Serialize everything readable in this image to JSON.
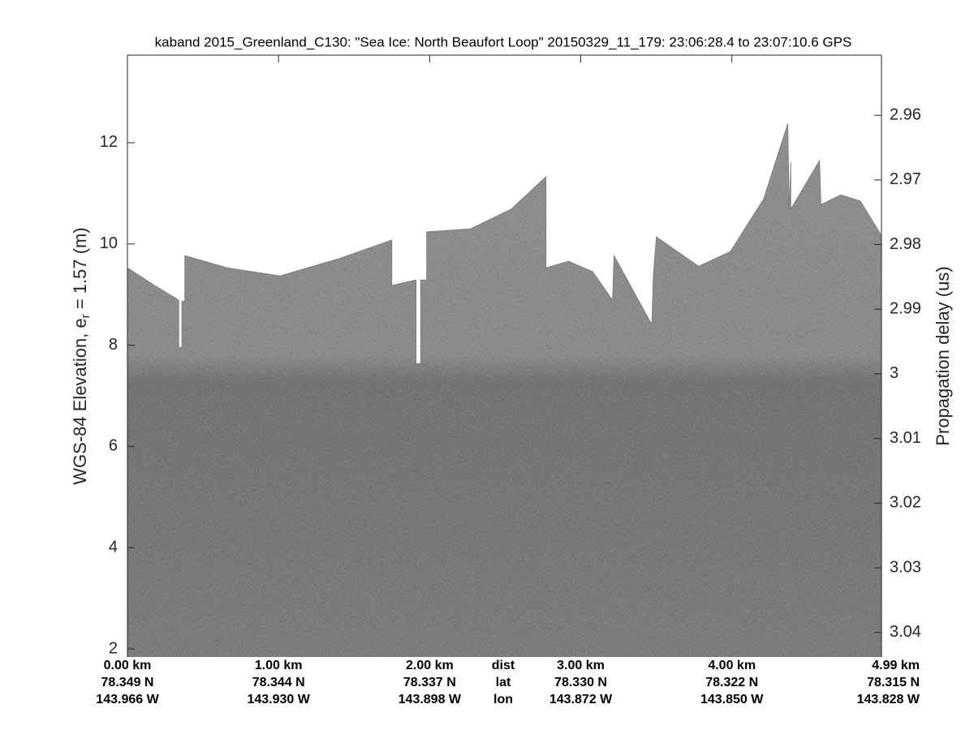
{
  "chart_data": {
    "type": "echogram",
    "title": "kaband 2015_Greenland_C130: \"Sea Ice: North Beaufort Loop\"  20150329_11_179: 23:06:28.4 to 23:07:10.6 GPS",
    "ylabel": "WGS-84 Elevation, e",
    "ylabel_sub": "r",
    "ylabel_rest": " = 1.57 (m)",
    "y2label": "Propagation delay (us)",
    "xlim": [
      0,
      4.99
    ],
    "ylim": [
      1.84,
      13.73
    ],
    "y2lim": [
      3.0438,
      2.9507
    ],
    "yticks": [
      2,
      4,
      6,
      8,
      10,
      12
    ],
    "y2ticks": [
      2.96,
      2.97,
      2.98,
      2.99,
      3,
      3.01,
      3.02,
      3.03,
      3.04
    ],
    "xticks": [
      {
        "value": 0,
        "label": "0.00 km"
      },
      {
        "value": 1,
        "label": "1.00 km"
      },
      {
        "value": 2,
        "label": "2.00 km"
      },
      {
        "value": 3,
        "label": "3.00 km"
      },
      {
        "value": 4,
        "label": "4.00 km"
      },
      {
        "value": 4.99,
        "label": "4.99 km"
      }
    ],
    "lat_labels": [
      "78.349 N",
      "78.344 N",
      "78.337 N",
      "78.330 N",
      "78.322 N",
      "78.315 N"
    ],
    "lon_labels": [
      "143.966 W",
      "143.930 W",
      "143.898 W",
      "143.872 W",
      "143.850 W",
      "143.828 W"
    ],
    "row_labels": [
      "dist",
      "lat",
      "lon"
    ],
    "surface": {
      "x": [
        0,
        0.18,
        0.34,
        0.34,
        0.36,
        0.36,
        0.38,
        0.38,
        0.66,
        1.01,
        1.41,
        1.75,
        1.75,
        1.91,
        1.91,
        1.94,
        1.94,
        1.98,
        1.98,
        2.27,
        2.54,
        2.77,
        2.77,
        2.92,
        3.08,
        3.21,
        3.22,
        3.47,
        3.48,
        3.5,
        3.78,
        3.99,
        4.21,
        4.37,
        4.38,
        4.39,
        4.39,
        4.58,
        4.59,
        4.72,
        4.85,
        4.99
      ],
      "values": [
        9.53,
        9.18,
        8.89,
        7.96,
        7.96,
        8.87,
        8.87,
        9.77,
        9.53,
        9.37,
        9.72,
        10.08,
        9.18,
        9.29,
        7.64,
        7.64,
        9.29,
        9.29,
        10.24,
        10.3,
        10.69,
        11.33,
        9.53,
        9.66,
        9.45,
        8.89,
        9.77,
        8.41,
        9.37,
        10.14,
        9.56,
        9.85,
        10.89,
        12.38,
        10.69,
        11.62,
        10.69,
        11.65,
        10.78,
        10.97,
        10.85,
        10.17
      ]
    }
  }
}
